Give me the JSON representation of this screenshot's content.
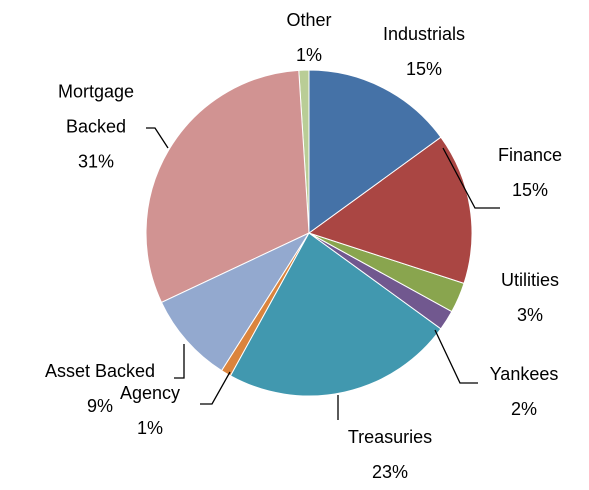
{
  "chart_data": {
    "type": "pie",
    "categories": [
      "Industrials",
      "Finance",
      "Utilities",
      "Yankees",
      "Treasuries",
      "Agency",
      "Asset Backed",
      "Mortgage Backed",
      "Other"
    ],
    "values": [
      15,
      15,
      3,
      2,
      23,
      1,
      9,
      31,
      1
    ],
    "value_labels": [
      "15%",
      "15%",
      "3%",
      "2%",
      "23%",
      "1%",
      "9%",
      "31%",
      "1%"
    ],
    "colors": [
      "#4572a7",
      "#aa4643",
      "#89a54e",
      "#71588f",
      "#4198af",
      "#db843d",
      "#93a9cf",
      "#d19392",
      "#b9cd96"
    ]
  }
}
